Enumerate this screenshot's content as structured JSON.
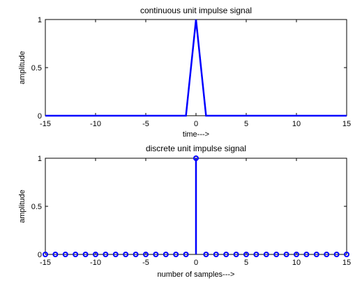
{
  "chart_data": [
    {
      "type": "line",
      "title": "continuous unit impulse signal",
      "xlabel": "time--->",
      "ylabel": "amplitude",
      "xlim": [
        -15,
        15
      ],
      "ylim": [
        0,
        1
      ],
      "xticks": [
        "-15",
        "-10",
        "-5",
        "0",
        "5",
        "10",
        "15"
      ],
      "yticks": [
        "0",
        "0.5",
        "1"
      ],
      "grid": false,
      "color": "#0000ff",
      "x": [
        -15,
        -1,
        0,
        1,
        15
      ],
      "y": [
        0,
        0,
        1,
        0,
        0
      ]
    },
    {
      "type": "stem",
      "title": "discrete unit impulse signal",
      "xlabel": "number of samples--->",
      "ylabel": "amplitude",
      "xlim": [
        -15,
        15
      ],
      "ylim": [
        0,
        1
      ],
      "xticks": [
        "-15",
        "-10",
        "-5",
        "0",
        "5",
        "10",
        "15"
      ],
      "yticks": [
        "0",
        "0.5",
        "1"
      ],
      "grid": false,
      "color": "#0000ff",
      "x": [
        -15,
        -14,
        -13,
        -12,
        -11,
        -10,
        -9,
        -8,
        -7,
        -6,
        -5,
        -4,
        -3,
        -2,
        -1,
        0,
        1,
        2,
        3,
        4,
        5,
        6,
        7,
        8,
        9,
        10,
        11,
        12,
        13,
        14,
        15
      ],
      "y": [
        0,
        0,
        0,
        0,
        0,
        0,
        0,
        0,
        0,
        0,
        0,
        0,
        0,
        0,
        0,
        1,
        0,
        0,
        0,
        0,
        0,
        0,
        0,
        0,
        0,
        0,
        0,
        0,
        0,
        0,
        0
      ]
    }
  ]
}
